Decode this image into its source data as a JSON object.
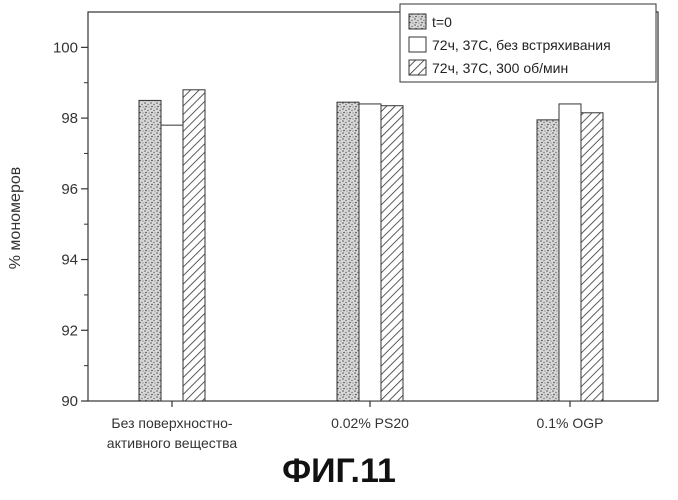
{
  "figure_caption": "ФИГ.11",
  "chart_data": {
    "type": "bar",
    "categories": [
      [
        "Без поверхностно-",
        "активного вещества"
      ],
      [
        "0.02% PS20"
      ],
      [
        "0.1% OGP"
      ]
    ],
    "series": [
      {
        "name": "t=0",
        "values": [
          98.5,
          98.45,
          97.95
        ]
      },
      {
        "name": "72ч, 37С, без встряхивания",
        "values": [
          97.8,
          98.4,
          98.4
        ]
      },
      {
        "name": "72ч, 37С, 300 об/мин",
        "values": [
          98.8,
          98.35,
          98.15
        ]
      }
    ],
    "ylabel": "% мономеров",
    "ylim": [
      90,
      101
    ],
    "yticks": [
      90,
      92,
      94,
      96,
      98,
      100
    ],
    "legend_position": "top-right",
    "grid": false,
    "series_fills": [
      "stipple",
      "empty",
      "hatch"
    ]
  }
}
